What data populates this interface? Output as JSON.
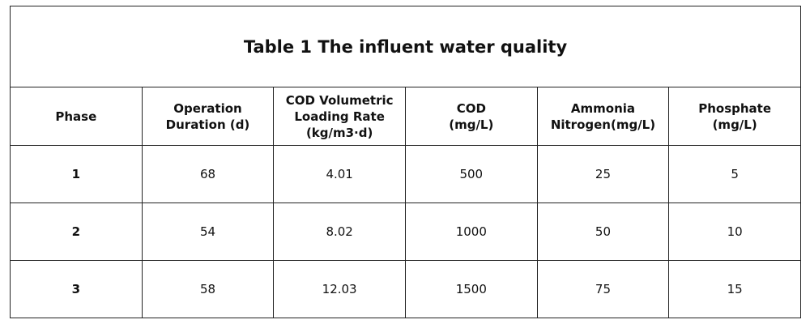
{
  "table": {
    "title": "Table 1 The influent water quality",
    "headers": [
      "Phase",
      "Operation\nDuration (d)",
      "COD Volumetric\nLoading Rate\n(kg/m3·d)",
      "COD\n(mg/L)",
      "Ammonia\nNitrogen(mg/L)",
      "Phosphate\n(mg/L)"
    ],
    "rows": [
      [
        1,
        68,
        4.01,
        500,
        25,
        5
      ],
      [
        2,
        54,
        8.02,
        1000,
        50,
        10
      ],
      [
        3,
        58,
        12.03,
        1500,
        75,
        15
      ]
    ]
  }
}
